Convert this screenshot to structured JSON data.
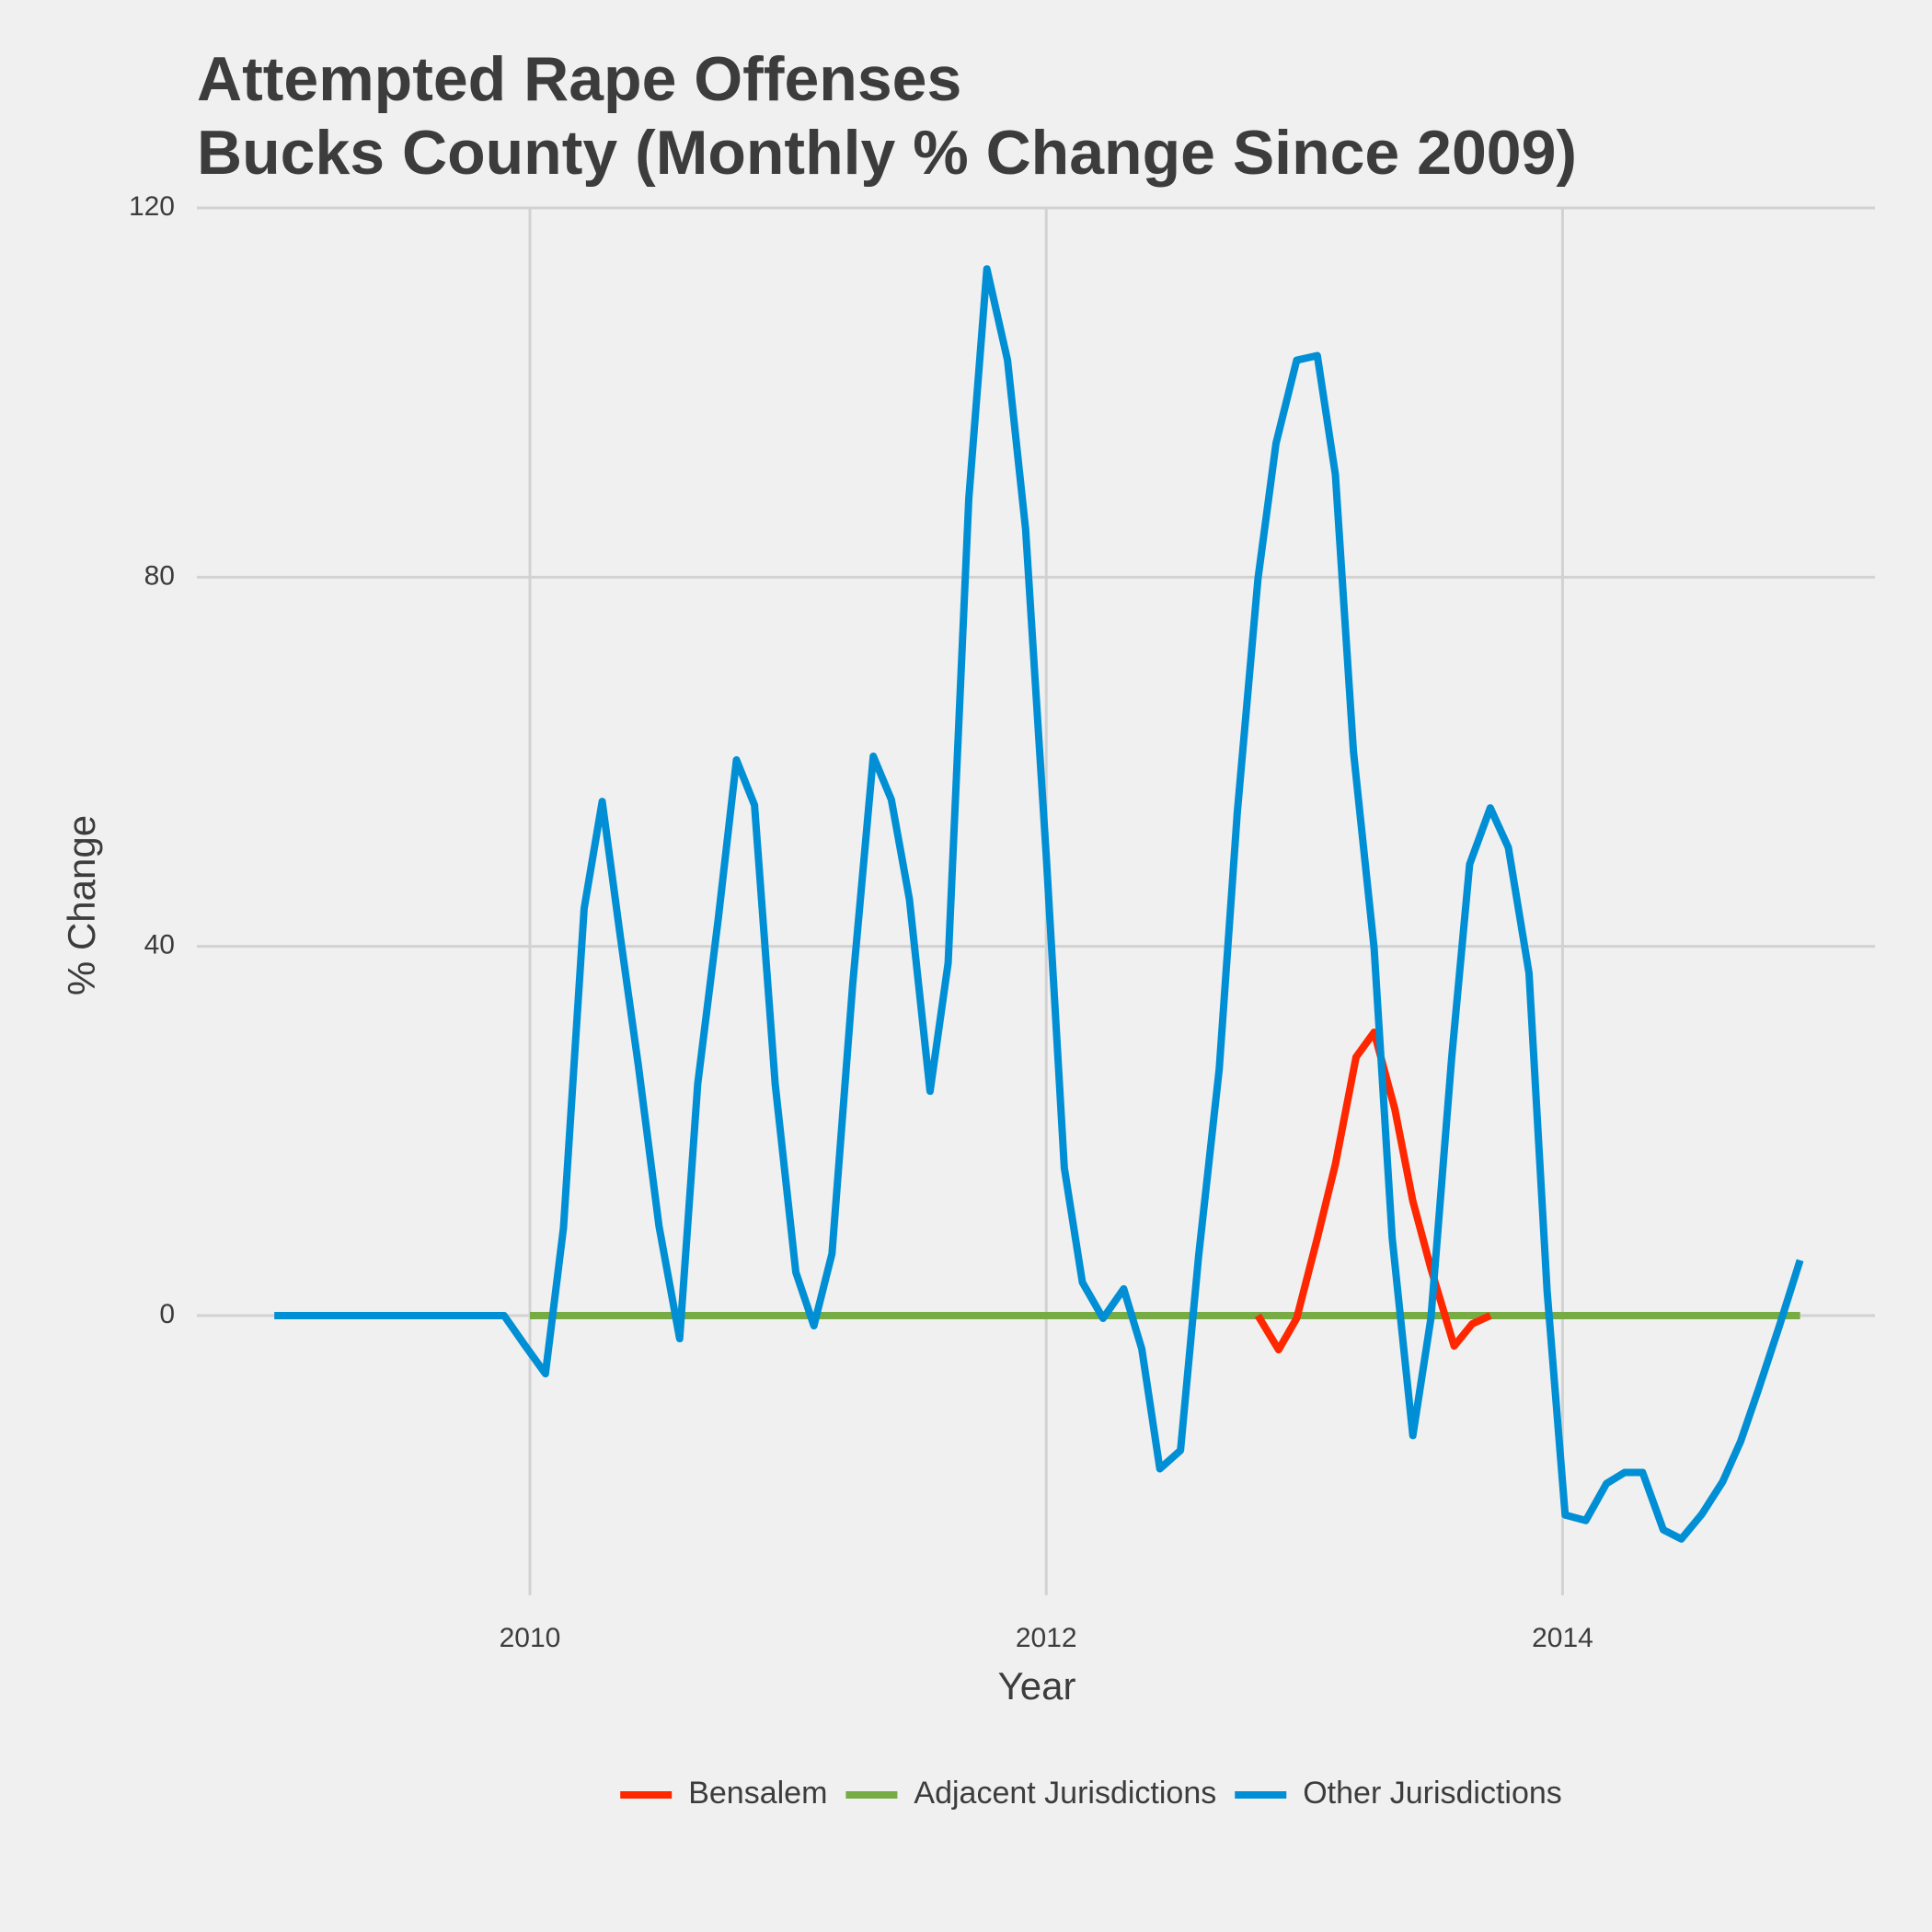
{
  "chart_data": {
    "type": "line",
    "title": [
      "Attempted Rape Offenses",
      "Bucks County (Monthly % Change Since 2009)"
    ],
    "x_label": "Year",
    "y_label": "% Change",
    "xlim": [
      2008.71,
      2015.21
    ],
    "xticks": [
      2010,
      2012,
      2014
    ],
    "ylim": [
      -30.3,
      120
    ],
    "yticks": [
      0,
      40,
      80,
      120
    ],
    "grid": true,
    "legend": "bottom",
    "series": [
      {
        "name": "Bensalem",
        "color": "#ff2700",
        "x": [
          2012.82,
          2012.9,
          2012.97,
          2013.05,
          2013.12,
          2013.2,
          2013.27,
          2013.35,
          2013.42,
          2013.49,
          2013.58,
          2013.65,
          2013.72
        ],
        "values": [
          0,
          -3.7,
          -0.3,
          8.4,
          16.4,
          28.0,
          30.7,
          22.4,
          12.4,
          5.1,
          -3.3,
          -0.9,
          0
        ]
      },
      {
        "name": "Adjacent Jurisdictions",
        "color": "#77ab43",
        "x": [
          2010.0,
          2014.92
        ],
        "values": [
          0,
          0
        ]
      },
      {
        "name": "Other Jurisdictions",
        "color": "#008fd5",
        "x": [
          2009.01,
          2009.9,
          2009.98,
          2010.06,
          2010.13,
          2010.21,
          2010.28,
          2010.35,
          2010.42,
          2010.5,
          2010.58,
          2010.65,
          2010.73,
          2010.8,
          2010.87,
          2010.95,
          2011.03,
          2011.1,
          2011.17,
          2011.25,
          2011.33,
          2011.4,
          2011.47,
          2011.55,
          2011.62,
          2011.7,
          2011.77,
          2011.85,
          2011.92,
          2012.0,
          2012.07,
          2012.14,
          2012.22,
          2012.3,
          2012.37,
          2012.44,
          2012.52,
          2012.59,
          2012.67,
          2012.74,
          2012.82,
          2012.89,
          2012.97,
          2013.05,
          2013.12,
          2013.19,
          2013.27,
          2013.34,
          2013.42,
          2013.49,
          2013.57,
          2013.64,
          2013.72,
          2013.79,
          2013.87,
          2013.94,
          2014.01,
          2014.09,
          2014.17,
          2014.24,
          2014.31,
          2014.39,
          2014.46,
          2014.54,
          2014.62,
          2014.69,
          2014.76,
          2014.84,
          2014.92
        ],
        "values": [
          0,
          0,
          -3.2,
          -6.3,
          9.5,
          44.1,
          55.7,
          41.1,
          27.1,
          9.7,
          -2.5,
          25.1,
          43.1,
          60.2,
          55.3,
          25.1,
          4.7,
          -1.1,
          6.7,
          35.8,
          60.6,
          55.9,
          45.1,
          24.3,
          38.2,
          88.5,
          113.4,
          103.5,
          85.2,
          49.8,
          16.0,
          3.6,
          -0.3,
          2.9,
          -3.6,
          -16.6,
          -14.6,
          6.4,
          26.7,
          54.5,
          79.8,
          94.5,
          103.5,
          104.0,
          91.1,
          61.1,
          39.8,
          8.4,
          -13.0,
          -0.3,
          27.8,
          48.9,
          55.0,
          50.7,
          37.1,
          2.7,
          -21.6,
          -22.2,
          -18.2,
          -17.0,
          -17.0,
          -23.2,
          -24.2,
          -21.5,
          -18.0,
          -13.6,
          -7.9,
          -1.1,
          6.0
        ]
      }
    ]
  }
}
